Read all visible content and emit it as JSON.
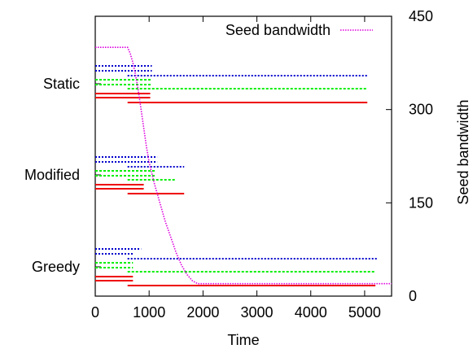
{
  "chart_data": {
    "type": "line",
    "xlabel": "Time",
    "ylabel_right": "Seed bandwidth",
    "xlim": [
      0,
      5500
    ],
    "xticks": [
      "0",
      "1000",
      "2000",
      "3000",
      "4000",
      "5000"
    ],
    "y2lim": [
      0,
      450
    ],
    "y2ticks": [
      "0",
      "150",
      "300",
      "450"
    ],
    "categories": [
      "Static",
      "Modified",
      "Greedy"
    ],
    "legend": {
      "label": "Seed bandwidth",
      "position": "top-right"
    },
    "colors": {
      "blue": "#0000cc",
      "green": "#00ee00",
      "red": "#ee0000",
      "seed": "#dd00dd",
      "frame": "#000000"
    },
    "groups": [
      {
        "name": "Static",
        "blue": [
          [
            0,
            1050
          ],
          [
            0,
            1050
          ],
          [
            600,
            5050
          ]
        ],
        "green": [
          [
            0,
            1030
          ],
          [
            0,
            1030
          ],
          [
            600,
            5050
          ]
        ],
        "red": [
          [
            0,
            1020
          ],
          [
            0,
            1020
          ],
          [
            600,
            5050
          ]
        ]
      },
      {
        "name": "Modified",
        "blue": [
          [
            0,
            1150
          ],
          [
            0,
            1150
          ],
          [
            600,
            1650
          ]
        ],
        "green": [
          [
            0,
            1120
          ],
          [
            0,
            1120
          ],
          [
            600,
            1500
          ]
        ],
        "red": [
          [
            0,
            900
          ],
          [
            0,
            900
          ],
          [
            600,
            1650
          ]
        ]
      },
      {
        "name": "Greedy",
        "blue": [
          [
            0,
            850
          ],
          [
            0,
            700
          ],
          [
            600,
            5250
          ]
        ],
        "green": [
          [
            0,
            700
          ],
          [
            0,
            700
          ],
          [
            600,
            5200
          ]
        ],
        "red": [
          [
            0,
            700
          ],
          [
            0,
            700
          ],
          [
            600,
            5200
          ]
        ]
      }
    ],
    "seed_bandwidth": {
      "x": [
        0,
        100,
        200,
        300,
        400,
        500,
        600,
        650,
        700,
        750,
        800,
        850,
        900,
        950,
        1000,
        1100,
        1200,
        1300,
        1400,
        1500,
        1600,
        1700,
        1800,
        1900,
        2000,
        3000,
        4000,
        5000,
        5500
      ],
      "y": [
        400,
        400,
        400,
        400,
        400,
        400,
        400,
        390,
        375,
        355,
        330,
        300,
        270,
        240,
        215,
        180,
        150,
        120,
        95,
        70,
        50,
        35,
        25,
        20,
        20,
        20,
        20,
        20,
        20
      ]
    }
  }
}
